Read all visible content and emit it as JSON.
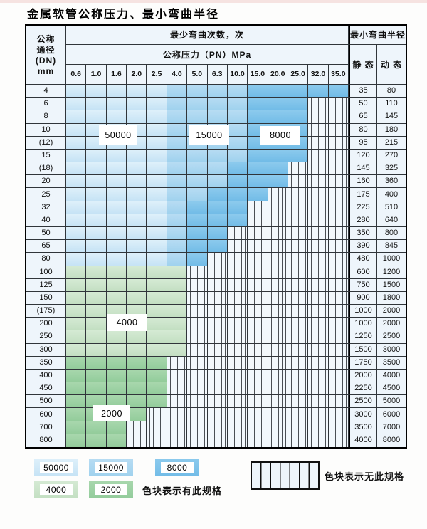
{
  "title": "金属软管公称压力、最小弯曲半径",
  "table": {
    "dn_header_lines": [
      "公称",
      "通径",
      "(DN)",
      "mm"
    ],
    "bend_cycles_header": "最少弯曲次数，次",
    "pressure_header": "公称压力（PN）MPa",
    "min_radius_header": "最小弯曲半径",
    "static_header": "静 态",
    "dynamic_header": "动 态",
    "pressure_columns": [
      "0.6",
      "1.0",
      "1.6",
      "2.0",
      "2.5",
      "4.0",
      "5.0",
      "6.3",
      "10.0",
      "15.0",
      "20.0",
      "25.0",
      "32.0",
      "35.0"
    ],
    "zone_code_meaning": {
      "A": "50000次",
      "B": "15000次",
      "C": "8000次",
      "D": "4000次",
      "E": "2000次",
      "N": "无此规格"
    },
    "rows": [
      {
        "dn": "4",
        "zones": "AAAAABBBBCCCCC",
        "static": "35",
        "dynamic": "80"
      },
      {
        "dn": "6",
        "zones": "AAAAABBBBCCCNN",
        "static": "50",
        "dynamic": "110"
      },
      {
        "dn": "8",
        "zones": "AAAAABBBBCCCNN",
        "static": "65",
        "dynamic": "145"
      },
      {
        "dn": "10",
        "zones": "AAAAABBBBCCCNN",
        "static": "80",
        "dynamic": "180"
      },
      {
        "dn": "(12)",
        "zones": "AAAAABBBBCCCNN",
        "static": "95",
        "dynamic": "215"
      },
      {
        "dn": "15",
        "zones": "AAAAABBBBCCCNN",
        "static": "120",
        "dynamic": "270"
      },
      {
        "dn": "(18)",
        "zones": "AAAAABBBCCCNNN",
        "static": "145",
        "dynamic": "325"
      },
      {
        "dn": "20",
        "zones": "AAAAABBBCCCNNN",
        "static": "160",
        "dynamic": "360"
      },
      {
        "dn": "25",
        "zones": "AAAAABBCCCNNNN",
        "static": "175",
        "dynamic": "400"
      },
      {
        "dn": "32",
        "zones": "AAAAABCCCNNNNN",
        "static": "225",
        "dynamic": "510"
      },
      {
        "dn": "40",
        "zones": "AAAAABCCCNNNNN",
        "static": "280",
        "dynamic": "640"
      },
      {
        "dn": "50",
        "zones": "AAAAABCCNNNNNN",
        "static": "350",
        "dynamic": "800"
      },
      {
        "dn": "65",
        "zones": "AAAAABCCNNNNNN",
        "static": "390",
        "dynamic": "845"
      },
      {
        "dn": "80",
        "zones": "AAAAABCNNNNNNN",
        "static": "480",
        "dynamic": "1000"
      },
      {
        "dn": "100",
        "zones": "DDDDDDNNNNNNNN",
        "static": "600",
        "dynamic": "1200"
      },
      {
        "dn": "125",
        "zones": "DDDDDDNNNNNNNN",
        "static": "750",
        "dynamic": "1500"
      },
      {
        "dn": "150",
        "zones": "DDDDDDNNNNNNNN",
        "static": "900",
        "dynamic": "1800"
      },
      {
        "dn": "(175)",
        "zones": "DDDDDDNNNNNNNN",
        "static": "1000",
        "dynamic": "2000"
      },
      {
        "dn": "200",
        "zones": "DDDDDDNNNNNNNN",
        "static": "1000",
        "dynamic": "2000"
      },
      {
        "dn": "250",
        "zones": "DDDDDDNNNNNNNN",
        "static": "1250",
        "dynamic": "2500"
      },
      {
        "dn": "300",
        "zones": "DDDDDDNNNNNNNN",
        "static": "1500",
        "dynamic": "3000"
      },
      {
        "dn": "350",
        "zones": "EEEEENNNNNNNNN",
        "static": "1750",
        "dynamic": "3500"
      },
      {
        "dn": "400",
        "zones": "EEEEENNNNNNNNN",
        "static": "2000",
        "dynamic": "4000"
      },
      {
        "dn": "450",
        "zones": "EEEEENNNNNNNNN",
        "static": "2250",
        "dynamic": "4500"
      },
      {
        "dn": "500",
        "zones": "EEEEENNNNNNNNN",
        "static": "2500",
        "dynamic": "5000"
      },
      {
        "dn": "600",
        "zones": "EEEENNNNNNNNNN",
        "static": "3000",
        "dynamic": "6000"
      },
      {
        "dn": "700",
        "zones": "EEENNNNNNNNNNN",
        "static": "3500",
        "dynamic": "7000"
      },
      {
        "dn": "800",
        "zones": "EEENNNNNNNNNNN",
        "static": "4000",
        "dynamic": "8000"
      }
    ],
    "overlay_labels": {
      "l50000": "50000",
      "l15000": "15000",
      "l8000": "8000",
      "l4000": "4000",
      "l2000": "2000"
    }
  },
  "legend": {
    "swatches": [
      {
        "label": "50000",
        "zone": "A",
        "color": "#c6e3f5"
      },
      {
        "label": "15000",
        "zone": "B",
        "color": "#a0d2ee"
      },
      {
        "label": "8000",
        "zone": "C",
        "color": "#72bce7"
      },
      {
        "label": "4000",
        "zone": "D",
        "color": "#c3dfc2"
      },
      {
        "label": "2000",
        "zone": "E",
        "color": "#93cc9b"
      }
    ],
    "available_note": "色块表示有此规格",
    "unavailable_note": "色块表示无此规格"
  },
  "colors": {
    "zone_50000": "#c6e3f5",
    "zone_15000": "#a0d2ee",
    "zone_8000": "#72bce7",
    "zone_4000": "#c3dfc2",
    "zone_2000": "#93cc9b",
    "no_spec_bg": "#f2f8fc",
    "grid_line": "#30353a",
    "pale_cell": "#eef5fb"
  }
}
